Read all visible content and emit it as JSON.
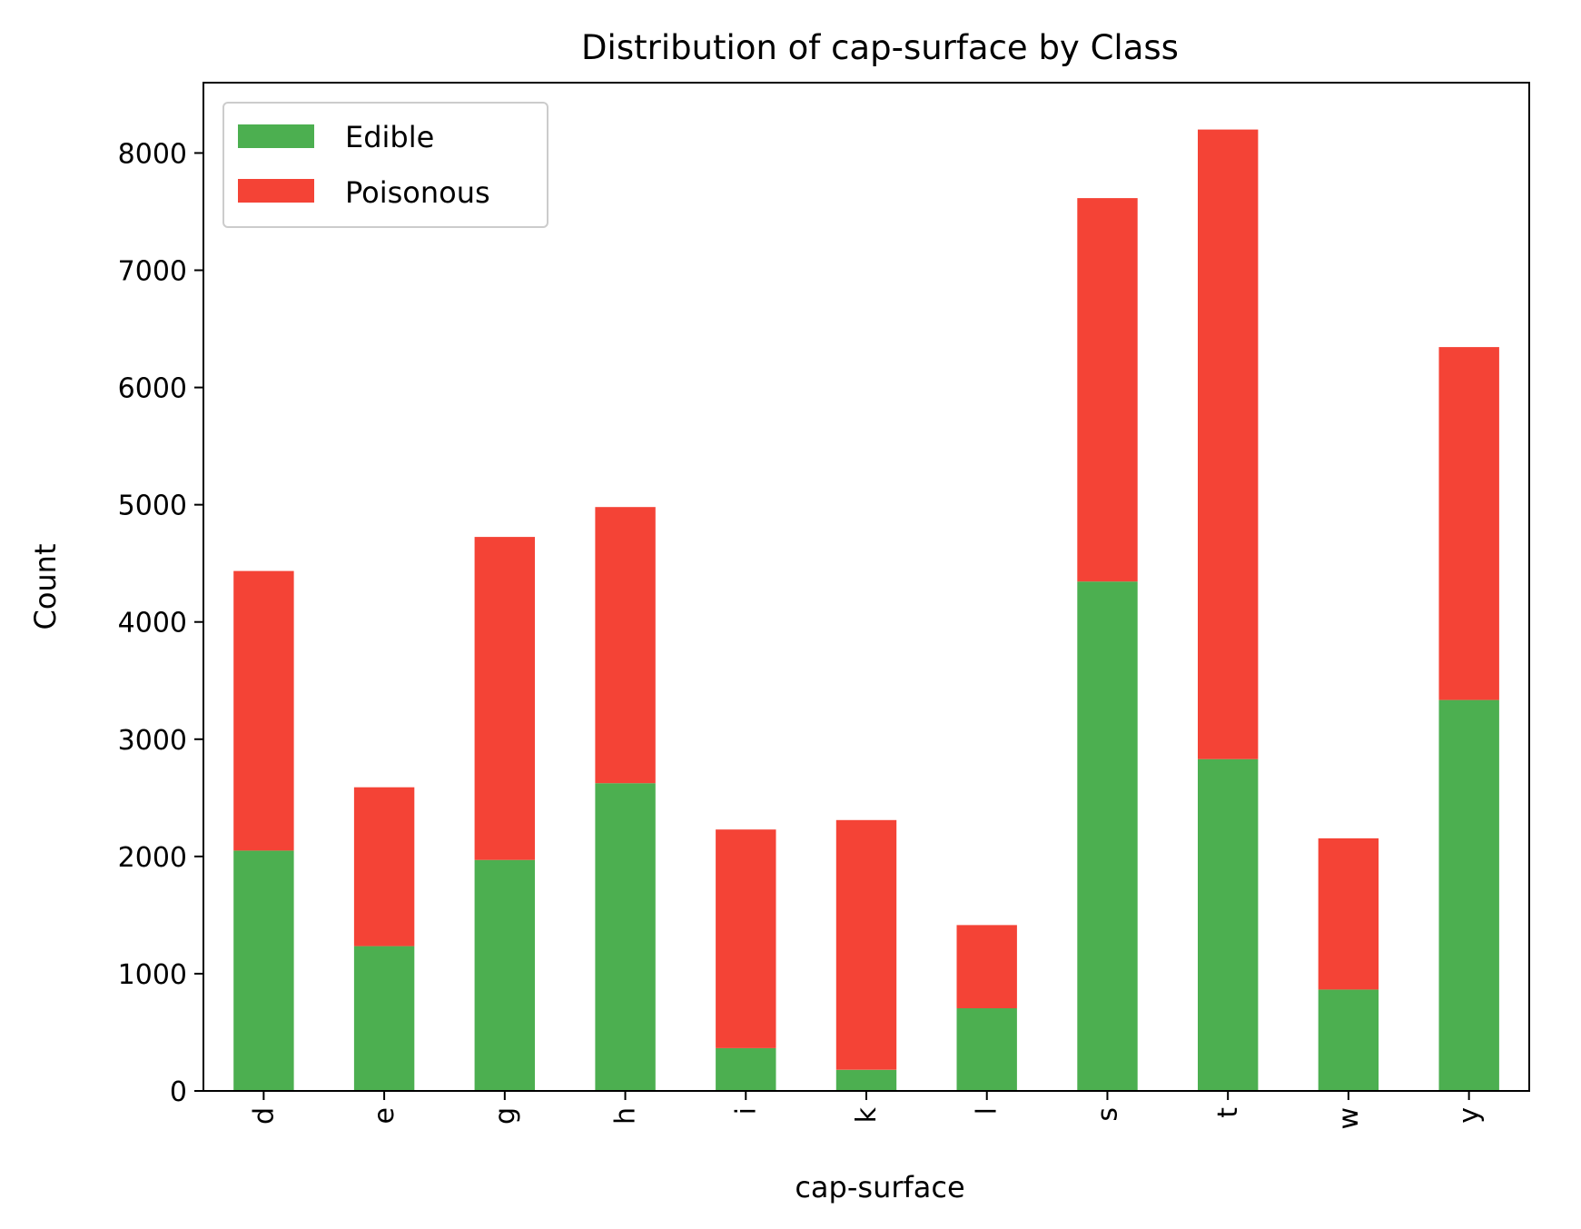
{
  "chart_data": {
    "type": "bar",
    "stacked": true,
    "title": "Distribution of cap-surface by Class",
    "xlabel": "cap-surface",
    "ylabel": "Count",
    "categories": [
      "d",
      "e",
      "g",
      "h",
      "i",
      "k",
      "l",
      "s",
      "t",
      "w",
      "y"
    ],
    "series": [
      {
        "name": "Edible",
        "color": "#4caf50",
        "values": [
          2050,
          1235,
          1970,
          2625,
          365,
          180,
          705,
          4345,
          2830,
          865,
          3335
        ]
      },
      {
        "name": "Poisonous",
        "color": "#f44336",
        "values": [
          2385,
          1355,
          2755,
          2355,
          1865,
          2130,
          710,
          3270,
          5370,
          1290,
          3010
        ]
      }
    ],
    "ylim": [
      0,
      8600
    ],
    "yticks": [
      0,
      1000,
      2000,
      3000,
      4000,
      5000,
      6000,
      7000,
      8000
    ],
    "grid": false,
    "legend_position": "top-left"
  }
}
